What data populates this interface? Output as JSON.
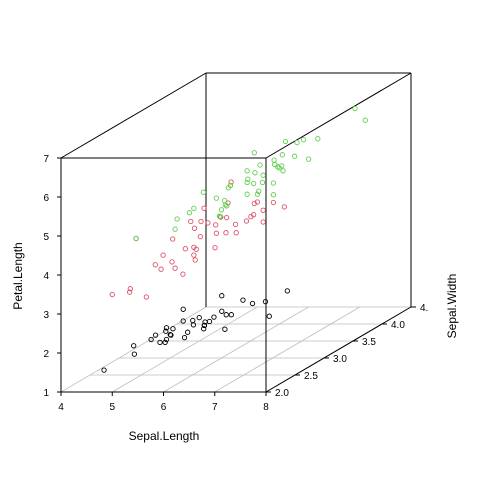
{
  "chart_data": {
    "type": "scatter3d",
    "xlabel": "Sepal.Length",
    "ylabel": "Sepal.Width",
    "zlabel": "Petal.Length",
    "xlim": [
      4,
      8
    ],
    "ylim": [
      2,
      4.5
    ],
    "zlim": [
      1,
      7
    ],
    "x_ticks": [
      "4",
      "5",
      "6",
      "7",
      "8"
    ],
    "y_ticks": [
      "2.0",
      "2.5",
      "3.0",
      "3.5",
      "4.0",
      "4."
    ],
    "z_ticks": [
      "1",
      "2",
      "3",
      "4",
      "5",
      "6",
      "7"
    ],
    "grid": "on floor",
    "box": true,
    "series": [
      {
        "color": "#000000",
        "points": [
          [
            4.8,
            3.0,
            1.4
          ],
          [
            5.1,
            3.5,
            1.4
          ],
          [
            4.9,
            3.0,
            1.4
          ],
          [
            4.7,
            3.2,
            1.3
          ],
          [
            4.6,
            3.1,
            1.5
          ],
          [
            5.0,
            3.6,
            1.4
          ],
          [
            5.4,
            3.9,
            1.7
          ],
          [
            4.6,
            3.4,
            1.4
          ],
          [
            5.0,
            3.4,
            1.5
          ],
          [
            4.4,
            2.9,
            1.4
          ],
          [
            4.9,
            3.1,
            1.5
          ],
          [
            5.4,
            3.7,
            1.5
          ],
          [
            4.8,
            3.4,
            1.6
          ],
          [
            4.3,
            3.0,
            1.1
          ],
          [
            5.8,
            4.0,
            1.2
          ],
          [
            5.7,
            4.4,
            1.5
          ],
          [
            5.1,
            3.5,
            1.4
          ],
          [
            5.7,
            3.8,
            1.7
          ],
          [
            5.1,
            3.8,
            1.5
          ],
          [
            5.4,
            3.4,
            1.7
          ],
          [
            4.6,
            3.6,
            1.0
          ],
          [
            5.1,
            3.3,
            1.7
          ],
          [
            4.8,
            3.4,
            1.9
          ],
          [
            5.0,
            3.0,
            1.6
          ],
          [
            5.2,
            3.5,
            1.5
          ],
          [
            5.2,
            3.4,
            1.4
          ],
          [
            4.7,
            3.2,
            1.6
          ],
          [
            5.5,
            4.2,
            1.4
          ],
          [
            5.5,
            3.5,
            1.3
          ],
          [
            4.4,
            3.2,
            1.3
          ],
          [
            5.0,
            3.5,
            1.6
          ],
          [
            4.5,
            2.3,
            1.3
          ],
          [
            5.3,
            3.7,
            1.5
          ],
          [
            5.0,
            3.3,
            1.4
          ],
          [
            5.1,
            3.8,
            1.9
          ],
          [
            4.8,
            3.1,
            1.6
          ]
        ]
      },
      {
        "color": "#DF536B",
        "points": [
          [
            7.0,
            3.2,
            4.7
          ],
          [
            6.4,
            3.2,
            4.5
          ],
          [
            6.9,
            3.1,
            4.9
          ],
          [
            5.5,
            2.3,
            4.0
          ],
          [
            6.5,
            2.8,
            4.6
          ],
          [
            5.7,
            2.8,
            4.5
          ],
          [
            6.3,
            3.3,
            4.7
          ],
          [
            4.9,
            2.4,
            3.3
          ],
          [
            6.6,
            2.9,
            4.6
          ],
          [
            5.2,
            2.7,
            3.9
          ],
          [
            5.0,
            2.0,
            3.5
          ],
          [
            5.9,
            3.0,
            4.2
          ],
          [
            6.0,
            2.2,
            4.0
          ],
          [
            6.1,
            2.9,
            4.7
          ],
          [
            5.6,
            2.9,
            3.6
          ],
          [
            6.7,
            3.1,
            4.4
          ],
          [
            5.6,
            3.0,
            4.5
          ],
          [
            5.8,
            2.7,
            4.1
          ],
          [
            6.2,
            2.2,
            4.5
          ],
          [
            5.6,
            2.5,
            3.9
          ],
          [
            5.9,
            3.2,
            4.8
          ],
          [
            6.1,
            2.8,
            4.0
          ],
          [
            6.3,
            2.5,
            4.9
          ],
          [
            6.4,
            2.9,
            4.3
          ],
          [
            6.8,
            2.8,
            4.8
          ],
          [
            6.7,
            3.0,
            5.0
          ],
          [
            6.0,
            2.9,
            4.5
          ],
          [
            5.7,
            2.6,
            3.5
          ],
          [
            5.5,
            2.4,
            3.8
          ],
          [
            5.8,
            2.7,
            3.9
          ],
          [
            6.0,
            2.7,
            5.1
          ],
          [
            5.4,
            3.0,
            4.5
          ],
          [
            6.7,
            3.1,
            4.7
          ],
          [
            6.3,
            2.3,
            4.4
          ],
          [
            5.5,
            2.6,
            4.4
          ],
          [
            6.1,
            3.0,
            4.6
          ],
          [
            5.0,
            2.3,
            3.3
          ],
          [
            5.7,
            2.9,
            4.2
          ],
          [
            6.2,
            2.9,
            4.3
          ],
          [
            5.1,
            2.5,
            3.0
          ],
          [
            4.9,
            2.5,
            4.5
          ],
          [
            6.3,
            2.9,
            5.6
          ]
        ]
      },
      {
        "color": "#61D04F",
        "points": [
          [
            6.3,
            3.3,
            6.0
          ],
          [
            5.8,
            2.7,
            5.1
          ],
          [
            7.1,
            3.0,
            5.9
          ],
          [
            6.5,
            3.0,
            5.8
          ],
          [
            7.6,
            3.0,
            6.6
          ],
          [
            7.3,
            2.9,
            6.3
          ],
          [
            6.7,
            2.5,
            5.8
          ],
          [
            7.2,
            3.6,
            6.1
          ],
          [
            6.5,
            3.2,
            5.1
          ],
          [
            6.4,
            2.7,
            5.3
          ],
          [
            6.8,
            3.0,
            5.5
          ],
          [
            5.7,
            2.5,
            5.0
          ],
          [
            6.4,
            3.2,
            5.3
          ],
          [
            6.5,
            3.0,
            5.5
          ],
          [
            7.7,
            3.8,
            6.7
          ],
          [
            7.7,
            2.6,
            6.9
          ],
          [
            6.0,
            2.2,
            5.0
          ],
          [
            6.9,
            3.2,
            5.7
          ],
          [
            5.6,
            2.8,
            4.9
          ],
          [
            7.7,
            2.8,
            6.7
          ],
          [
            6.3,
            2.7,
            4.9
          ],
          [
            6.7,
            3.3,
            5.7
          ],
          [
            7.2,
            3.2,
            6.0
          ],
          [
            6.2,
            2.8,
            4.8
          ],
          [
            6.1,
            3.0,
            4.9
          ],
          [
            6.4,
            2.8,
            5.6
          ],
          [
            7.2,
            3.0,
            5.8
          ],
          [
            7.4,
            2.8,
            6.1
          ],
          [
            7.9,
            3.8,
            6.4
          ],
          [
            6.4,
            2.8,
            5.6
          ],
          [
            6.3,
            2.8,
            5.1
          ],
          [
            6.1,
            2.6,
            5.6
          ],
          [
            7.7,
            3.0,
            6.1
          ],
          [
            6.3,
            3.4,
            5.6
          ],
          [
            6.4,
            3.1,
            5.5
          ],
          [
            6.0,
            3.0,
            4.8
          ],
          [
            6.9,
            3.1,
            5.4
          ],
          [
            6.7,
            3.1,
            5.6
          ],
          [
            6.9,
            3.1,
            5.1
          ],
          [
            6.8,
            3.2,
            5.9
          ],
          [
            6.7,
            3.3,
            5.7
          ],
          [
            6.7,
            3.0,
            5.2
          ],
          [
            6.5,
            3.0,
            5.2
          ],
          [
            6.2,
            3.4,
            5.4
          ],
          [
            5.9,
            3.0,
            5.1
          ],
          [
            4.9,
            2.5,
            4.5
          ]
        ]
      }
    ]
  }
}
